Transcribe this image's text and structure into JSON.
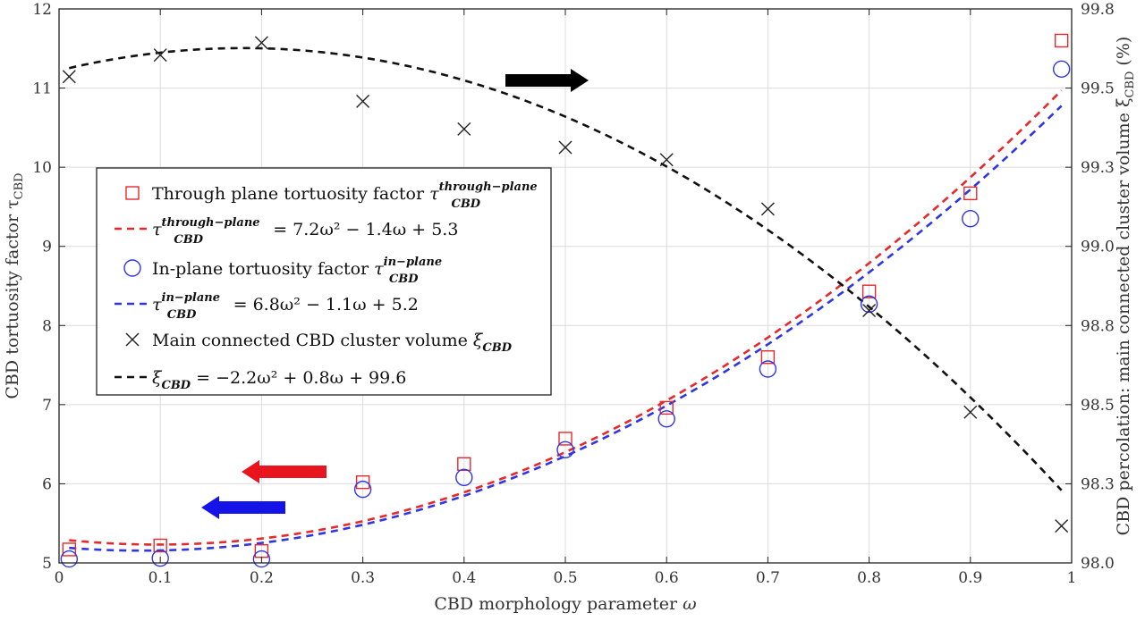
{
  "chart_data": {
    "type": "scatter",
    "x_axis": {
      "label_text": "CBD morphology parameter ",
      "label_symbol": "ω",
      "range": [
        0,
        1
      ],
      "ticks": [
        "0",
        "0.1",
        "0.2",
        "0.3",
        "0.4",
        "0.5",
        "0.6",
        "0.7",
        "0.8",
        "0.9",
        "1"
      ]
    },
    "y_left": {
      "label_text": "CBD tortuosity factor τ",
      "label_sub": "CBD",
      "range": [
        5,
        12
      ],
      "ticks": [
        "5",
        "6",
        "7",
        "8",
        "9",
        "10",
        "11",
        "12"
      ]
    },
    "y_right": {
      "label_text": "CBD percolation: main connected cluster volume ξ",
      "label_sub": "CBD",
      "label_suffix": " (%)",
      "range": [
        98.0,
        99.8
      ],
      "ticks": [
        "98.0",
        "98.3",
        "98.5",
        "98.8",
        "99.0",
        "99.3",
        "99.5",
        "99.8"
      ]
    },
    "series": [
      {
        "name": "Through plane tortuosity factor",
        "kind": "marker",
        "marker": "square",
        "axis": "left",
        "color": "#e8282b",
        "x": [
          0.01,
          0.1,
          0.2,
          0.3,
          0.4,
          0.5,
          0.6,
          0.7,
          0.8,
          0.9,
          0.99
        ],
        "y": [
          5.17,
          5.22,
          5.15,
          6.02,
          6.25,
          6.57,
          6.96,
          7.6,
          8.43,
          9.67,
          11.6
        ]
      },
      {
        "name": "In-plane tortuosity factor",
        "kind": "marker",
        "marker": "circle",
        "axis": "left",
        "color": "#2f35e6",
        "x": [
          0.01,
          0.1,
          0.2,
          0.3,
          0.4,
          0.5,
          0.6,
          0.7,
          0.8,
          0.9,
          0.99
        ],
        "y": [
          5.05,
          5.06,
          5.05,
          5.93,
          6.08,
          6.43,
          6.82,
          7.45,
          8.27,
          9.35,
          11.24
        ]
      },
      {
        "name": "Main connected CBD cluster volume",
        "kind": "marker",
        "marker": "cross",
        "axis": "right",
        "color": "#222222",
        "x": [
          0.01,
          0.1,
          0.2,
          0.3,
          0.4,
          0.5,
          0.6,
          0.7,
          0.8,
          0.9,
          0.99
        ],
        "y": [
          99.58,
          99.65,
          99.69,
          99.5,
          99.41,
          99.35,
          99.31,
          99.15,
          98.82,
          98.49,
          98.12
        ]
      },
      {
        "name": "Through-plane fit",
        "kind": "fit",
        "axis": "left",
        "color": "#e8282b",
        "coeffs": [
          7.2,
          -1.4,
          5.3
        ]
      },
      {
        "name": "In-plane fit",
        "kind": "fit",
        "axis": "left",
        "color": "#2f35e6",
        "coeffs": [
          6.8,
          -1.1,
          5.2
        ]
      },
      {
        "name": "Cluster volume fit",
        "kind": "fit",
        "axis": "right",
        "color": "#111111",
        "coeffs": [
          -2.2,
          0.8,
          99.6
        ]
      }
    ],
    "legend": {
      "placement": "center-left",
      "entries": [
        {
          "marker": "square",
          "color": "#e8282b",
          "text": "Through plane tortuosity factor ",
          "math": "τ",
          "sub": "CBD",
          "sup": "through−plane"
        },
        {
          "marker": "dash",
          "color": "#e8282b",
          "math": "τ",
          "sub": "CBD",
          "sup": "through−plane",
          "rhs": " = 7.2ω² − 1.4ω + 5.3"
        },
        {
          "marker": "circle",
          "color": "#2f35e6",
          "text": "In-plane tortuosity factor ",
          "math": "τ",
          "sub": "CBD",
          "sup": "in−plane"
        },
        {
          "marker": "dash",
          "color": "#2f35e6",
          "math": "τ",
          "sub": "CBD",
          "sup": "in−plane",
          "rhs": " = 6.8ω² − 1.1ω + 5.2"
        },
        {
          "marker": "cross",
          "color": "#222222",
          "text": "Main connected  CBD cluster volume ",
          "math": "ξ",
          "sub": "CBD",
          "sup": ""
        },
        {
          "marker": "dash",
          "color": "#111111",
          "math": "ξ",
          "sub": "CBD",
          "sup": "",
          "rhs": " = −2.2ω² + 0.8ω + 99.6"
        }
      ]
    },
    "annotations": [
      {
        "type": "arrow",
        "direction": "right",
        "color": "#000000",
        "meaning": "black curve uses right axis"
      },
      {
        "type": "arrow",
        "direction": "left",
        "color": "#e8141e",
        "meaning": "red data uses left axis"
      },
      {
        "type": "arrow",
        "direction": "left",
        "color": "#1414e8",
        "meaning": "blue data uses left axis"
      }
    ],
    "grid": true
  }
}
